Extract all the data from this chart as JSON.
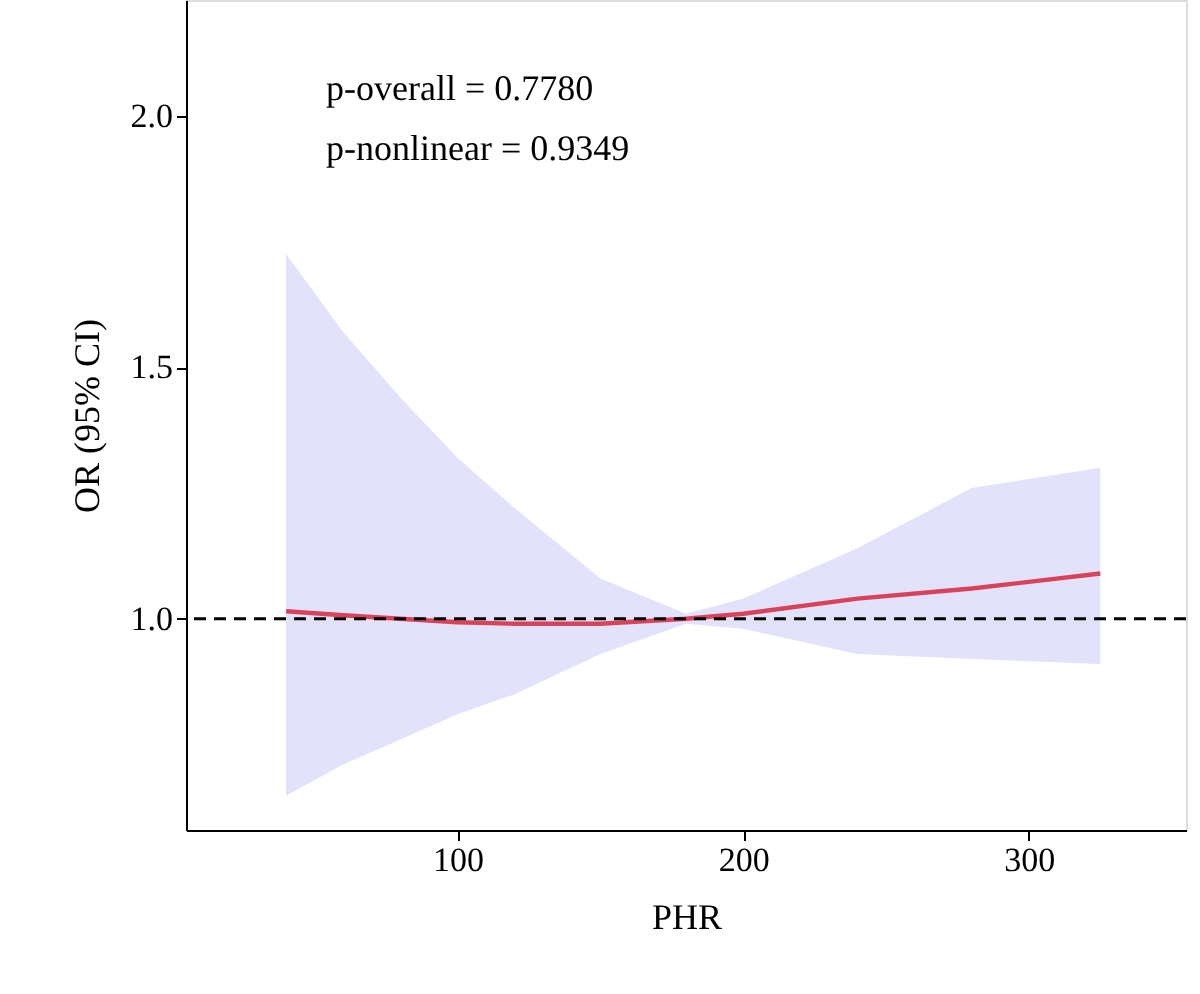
{
  "chart_data": {
    "type": "line",
    "xlabel": "PHR",
    "ylabel": "OR (95% CI)",
    "annotations": [
      "p-overall = 0.7780",
      "p-nonlinear = 0.9349"
    ],
    "x": [
      40,
      60,
      80,
      100,
      120,
      150,
      180,
      200,
      240,
      280,
      325
    ],
    "series": [
      {
        "color": "#d9435a",
        "values": [
          1.015,
          1.007,
          1.0,
          0.993,
          0.99,
          0.99,
          1.0,
          1.01,
          1.04,
          1.06,
          1.09
        ],
        "lower": [
          0.648,
          0.71,
          0.76,
          0.81,
          0.85,
          0.93,
          0.99,
          0.98,
          0.93,
          0.92,
          0.91
        ],
        "upper": [
          1.725,
          1.57,
          1.44,
          1.32,
          1.22,
          1.08,
          1.01,
          1.04,
          1.14,
          1.26,
          1.3
        ]
      }
    ],
    "xlim": [
      5,
      355
    ],
    "ylim": [
      0.58,
      2.23
    ],
    "xticks": [
      100,
      200,
      300
    ],
    "yticks": [
      {
        "value": 1,
        "label": "1.0"
      },
      1.5,
      {
        "value": 2,
        "label": "2.0"
      }
    ],
    "ref_lines": [
      {
        "axis": "y",
        "value": 1.0,
        "line_style": "dashed",
        "color": "#000000"
      }
    ],
    "grid": false,
    "line_style": "solid",
    "marker": "none"
  }
}
